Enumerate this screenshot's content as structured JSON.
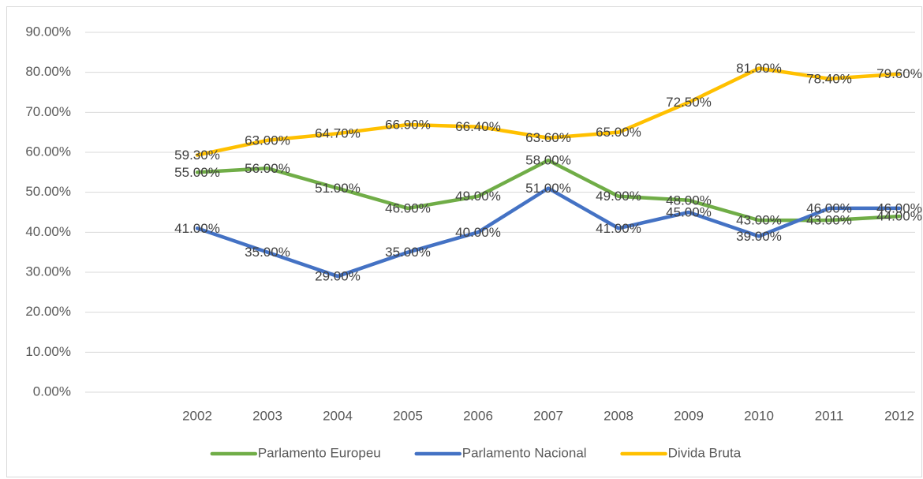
{
  "chart_data": {
    "type": "line",
    "categories": [
      "2002",
      "2003",
      "2004",
      "2005",
      "2006",
      "2007",
      "2008",
      "2009",
      "2010",
      "2011",
      "2012"
    ],
    "series": [
      {
        "name": "Parlamento Europeu",
        "color": "#70ad47",
        "values": [
          55,
          56,
          51,
          46,
          49,
          58,
          49,
          48,
          43,
          43,
          44
        ],
        "value_labels": [
          "55.00%",
          "56.00%",
          "51.00%",
          "46.00%",
          "49.00%",
          "58.00%",
          "49.00%",
          "48.00%",
          "43.00%",
          "43.00%",
          "44.00%"
        ]
      },
      {
        "name": "Parlamento Nacional",
        "color": "#4472c4",
        "values": [
          41,
          35,
          29,
          35,
          40,
          51,
          41,
          45,
          39,
          46,
          46
        ],
        "value_labels": [
          "41.00%",
          "35.00%",
          "29.00%",
          "35.00%",
          "40.00%",
          "51.00%",
          "41.00%",
          "45.00%",
          "39.00%",
          "46.00%",
          "46.00%"
        ]
      },
      {
        "name": "Divida Bruta",
        "color": "#ffc000",
        "values": [
          59.3,
          63,
          64.7,
          66.9,
          66.4,
          63.6,
          65,
          72.5,
          81,
          78.4,
          79.6
        ],
        "value_labels": [
          "59.30%",
          "63.00%",
          "64.70%",
          "66.90%",
          "66.40%",
          "63.60%",
          "65.00%",
          "72.50%",
          "81.00%",
          "78.40%",
          "79.60%"
        ]
      }
    ],
    "ylim": [
      0,
      90
    ],
    "yticks": [
      {
        "value": 0,
        "label": "0.00%"
      },
      {
        "value": 10,
        "label": "10.00%"
      },
      {
        "value": 20,
        "label": "20.00%"
      },
      {
        "value": 30,
        "label": "30.00%"
      },
      {
        "value": 40,
        "label": "40.00%"
      },
      {
        "value": 50,
        "label": "50.00%"
      },
      {
        "value": 60,
        "label": "60.00%"
      },
      {
        "value": 70,
        "label": "70.00%"
      },
      {
        "value": 80,
        "label": "80.00%"
      },
      {
        "value": 90,
        "label": "90.00%"
      }
    ],
    "grid": true,
    "legend": "bottom"
  }
}
